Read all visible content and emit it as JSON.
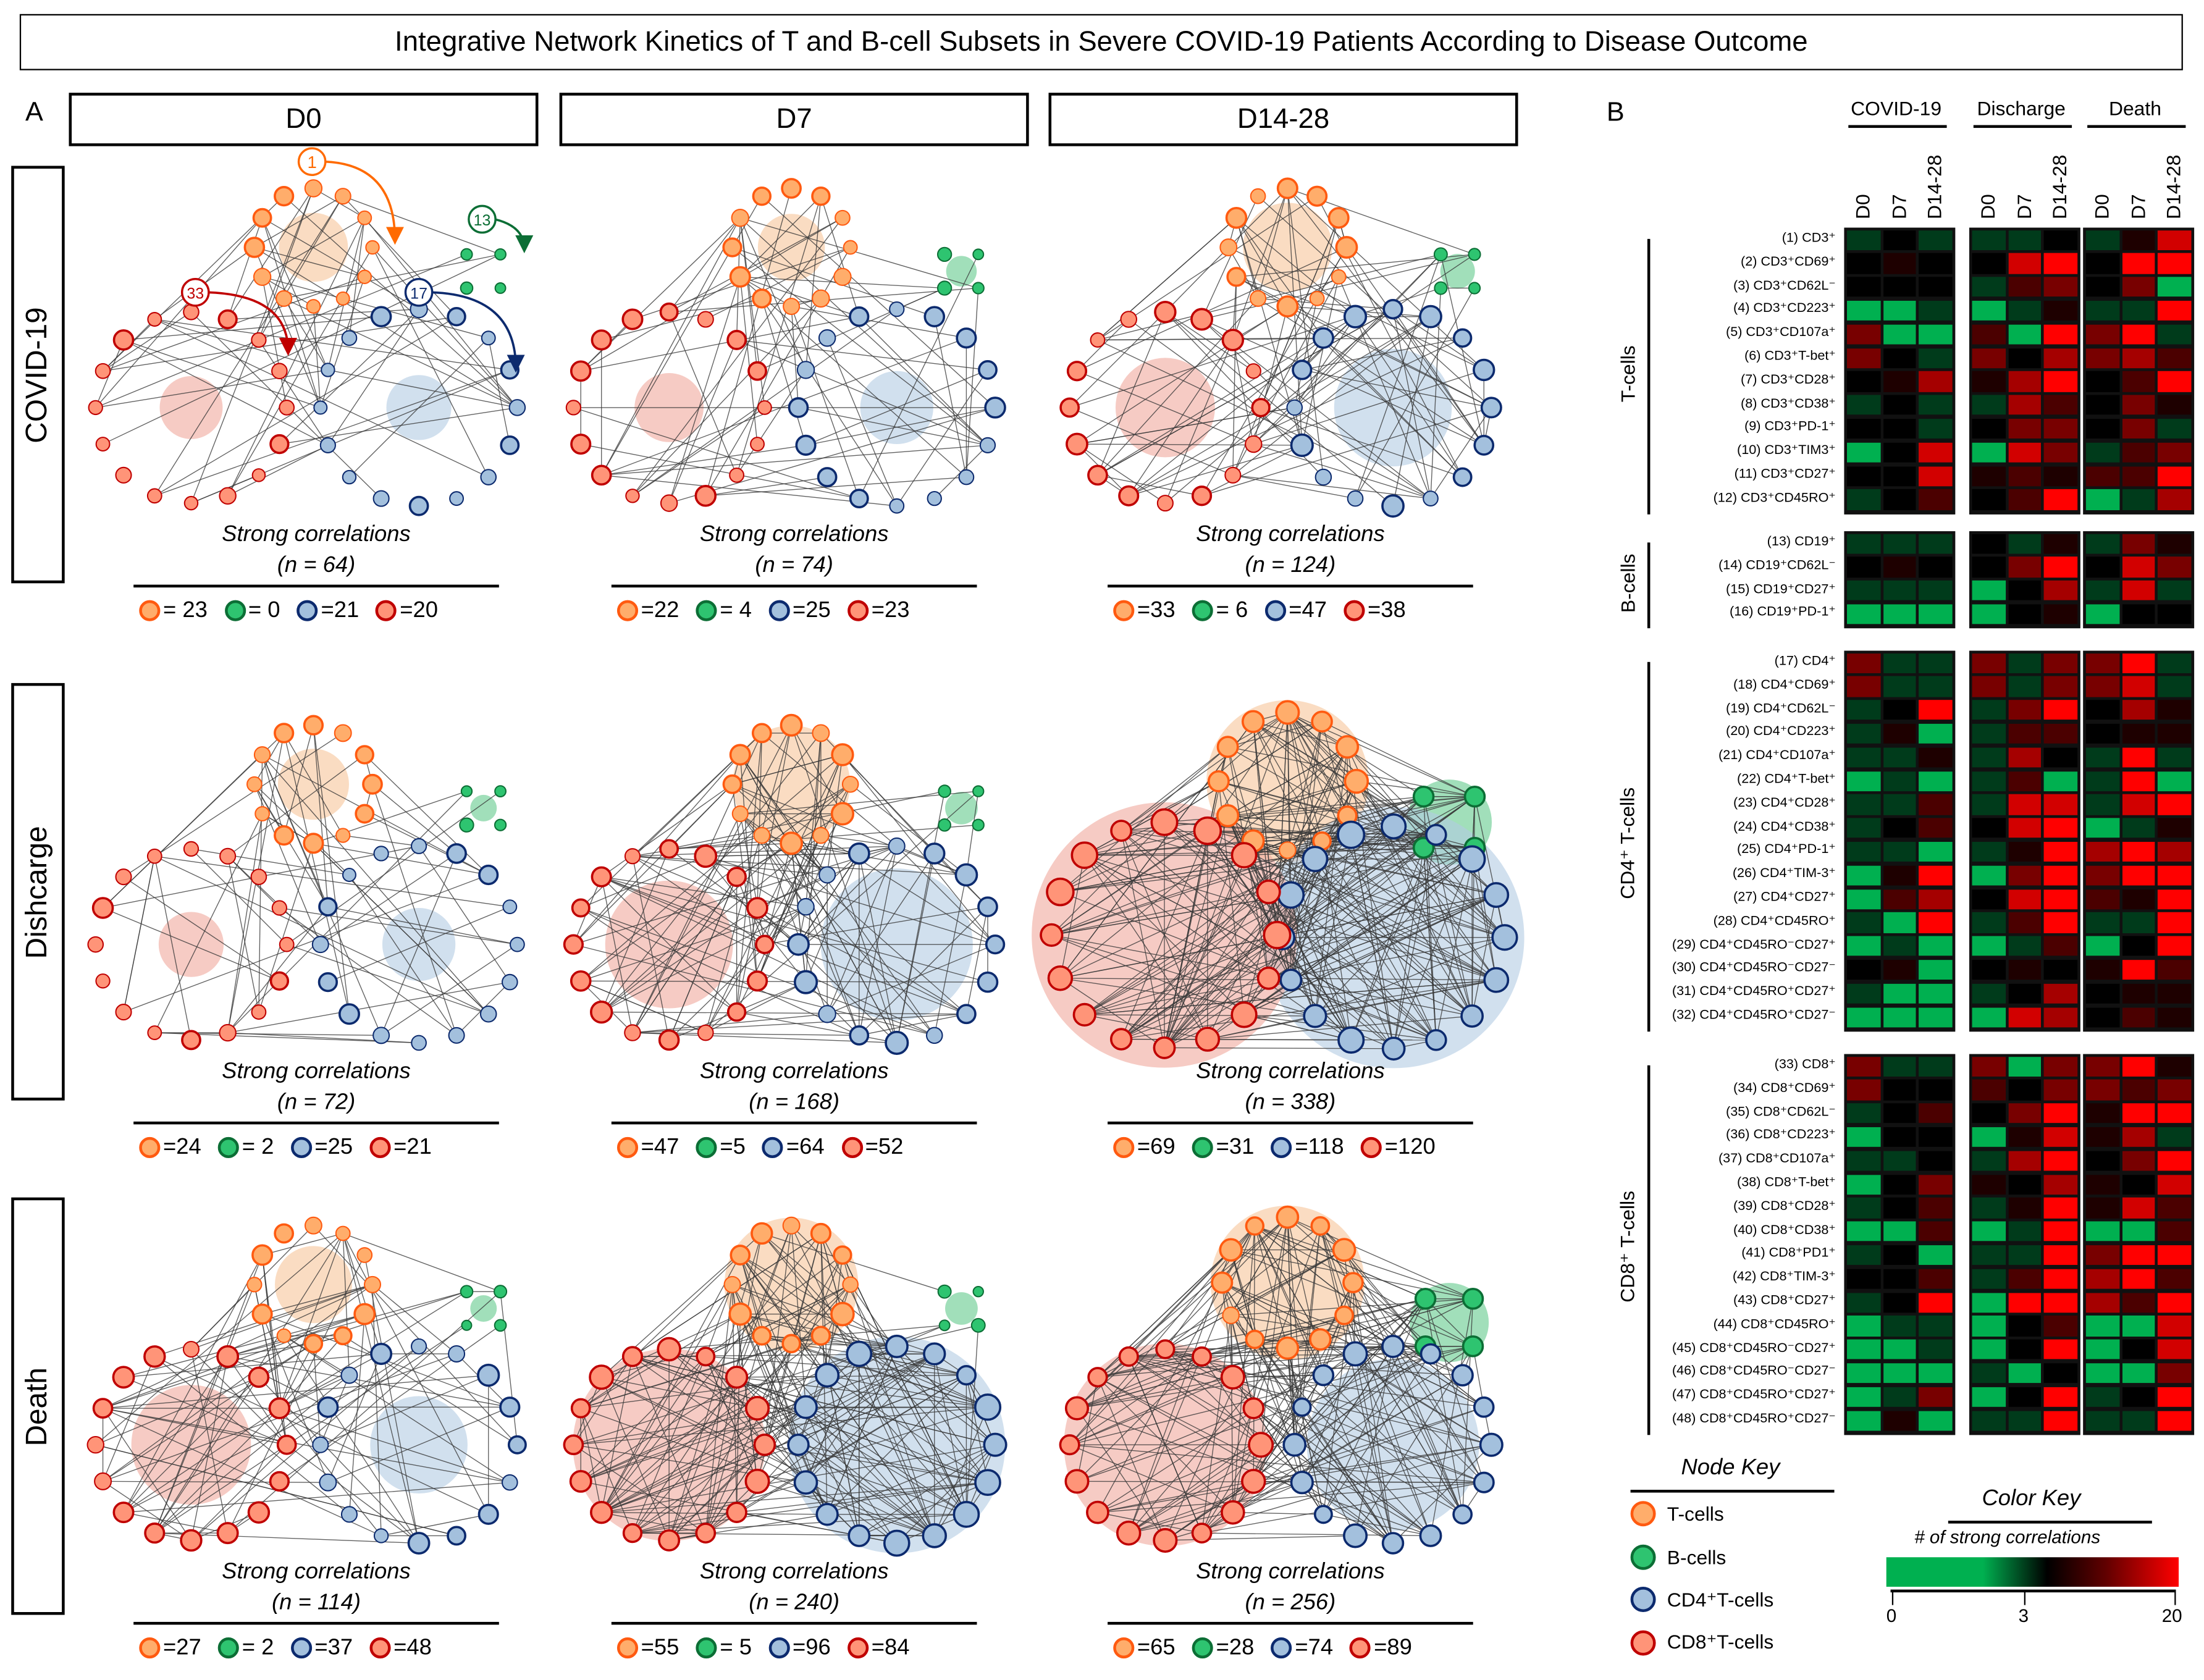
{
  "title": "Integrative Network Kinetics of T and B-cell Subsets in Severe COVID-19 Patients According to Disease Outcome",
  "panel_a_label": "A",
  "panel_b_label": "B",
  "columns": [
    "D0",
    "D7",
    "D14-28"
  ],
  "rows": [
    "COVID-19",
    "Dishcarge",
    "Death"
  ],
  "caption": "Strong correlations",
  "colors": {
    "t_fill": "#ffad6b",
    "t_stroke": "#ff5a10",
    "b_fill": "#2ec470",
    "b_stroke": "#0c6e35",
    "cd4_fill": "#a3c0dd",
    "cd4_stroke": "#0c2a6e",
    "cd8_fill": "#ff9478",
    "cd8_stroke": "#c00000"
  },
  "panels": [
    {
      "row": 0,
      "col": 0,
      "n": 64,
      "n_label": "(n = 64)",
      "counts": [
        23,
        0,
        21,
        20
      ],
      "count_labels": [
        "= 23",
        "= 0",
        "=21",
        "=20"
      ]
    },
    {
      "row": 0,
      "col": 1,
      "n": 74,
      "n_label": "(n = 74)",
      "counts": [
        22,
        4,
        25,
        23
      ],
      "count_labels": [
        "=22",
        "= 4",
        "=25",
        "=23"
      ]
    },
    {
      "row": 0,
      "col": 2,
      "n": 124,
      "n_label": "(n = 124)",
      "counts": [
        33,
        6,
        47,
        38
      ],
      "count_labels": [
        "=33",
        "= 6",
        "=47",
        "=38"
      ]
    },
    {
      "row": 1,
      "col": 0,
      "n": 72,
      "n_label": "(n = 72)",
      "counts": [
        24,
        2,
        25,
        21
      ],
      "count_labels": [
        "=24",
        "= 2",
        "=25",
        "=21"
      ]
    },
    {
      "row": 1,
      "col": 1,
      "n": 168,
      "n_label": "(n = 168)",
      "counts": [
        47,
        5,
        64,
        52
      ],
      "count_labels": [
        "=47",
        "=5",
        "=64",
        "=52"
      ]
    },
    {
      "row": 1,
      "col": 2,
      "n": 338,
      "n_label": "(n = 338)",
      "counts": [
        69,
        31,
        118,
        120
      ],
      "count_labels": [
        "=69",
        "=31",
        "=118",
        "=120"
      ]
    },
    {
      "row": 2,
      "col": 0,
      "n": 114,
      "n_label": "(n = 114)",
      "counts": [
        27,
        2,
        37,
        48
      ],
      "count_labels": [
        "=27",
        "= 2",
        "=37",
        "=48"
      ]
    },
    {
      "row": 2,
      "col": 1,
      "n": 240,
      "n_label": "(n = 240)",
      "counts": [
        55,
        5,
        96,
        84
      ],
      "count_labels": [
        "=55",
        "= 5",
        "=96",
        "=84"
      ]
    },
    {
      "row": 2,
      "col": 2,
      "n": 256,
      "n_label": "(n = 256)",
      "counts": [
        65,
        28,
        74,
        89
      ],
      "count_labels": [
        "=65",
        "=28",
        "=74",
        "=89"
      ]
    }
  ],
  "annotations": [
    {
      "label": "1",
      "group": "T"
    },
    {
      "label": "13",
      "group": "B"
    },
    {
      "label": "17",
      "group": "CD4"
    },
    {
      "label": "33",
      "group": "CD8"
    }
  ],
  "node_key": {
    "title": "Node Key",
    "items": [
      {
        "label": "T-cells",
        "group": "T"
      },
      {
        "label": "B-cells",
        "group": "B"
      },
      {
        "label": "CD4⁺T-cells",
        "group": "CD4"
      },
      {
        "label": "CD8⁺T-cells",
        "group": "CD8"
      }
    ]
  },
  "color_key": {
    "title": "Color Key",
    "subtitle": "# of strong correlations",
    "ticks": [
      "0",
      "3",
      "20"
    ],
    "low_color": "#00b050",
    "mid_color": "#000000",
    "high_color": "#ff0000"
  },
  "heatmap": {
    "group_headers": [
      "COVID-19",
      "Discharge",
      "Death"
    ],
    "time_labels": [
      "D0",
      "D7",
      "D14-28"
    ],
    "groups": [
      {
        "label": "T-cells",
        "rows": [
          {
            "label": "(1) CD3⁺",
            "values": [
              2,
              3,
              2,
              2,
              2,
              3,
              2,
              5,
              17
            ]
          },
          {
            "label": "(2) CD3⁺CD69⁺",
            "values": [
              3,
              5,
              3,
              3,
              17,
              20,
              3,
              20,
              20
            ]
          },
          {
            "label": "(3) CD3⁺CD62L⁻",
            "values": [
              3,
              3,
              3,
              2,
              8,
              11,
              3,
              11,
              0
            ]
          },
          {
            "label": "(4) CD3⁺CD223⁺",
            "values": [
              0,
              0,
              2,
              0,
              2,
              5,
              2,
              2,
              20
            ]
          },
          {
            "label": "(5) CD3⁺CD107a⁺",
            "values": [
              11,
              0,
              0,
              8,
              0,
              20,
              11,
              20,
              2
            ]
          },
          {
            "label": "(6) CD3⁺T-bet⁺",
            "values": [
              11,
              3,
              2,
              11,
              3,
              14,
              11,
              14,
              8
            ]
          },
          {
            "label": "(7) CD3⁺CD28⁺",
            "values": [
              3,
              5,
              14,
              5,
              14,
              20,
              3,
              8,
              20
            ]
          },
          {
            "label": "(8) CD3⁺CD38⁺",
            "values": [
              2,
              3,
              2,
              2,
              14,
              8,
              3,
              11,
              5
            ]
          },
          {
            "label": "(9) CD3⁺PD-1⁺",
            "values": [
              3,
              3,
              2,
              3,
              11,
              11,
              3,
              11,
              2
            ]
          },
          {
            "label": "(10) CD3⁺TIM3⁺",
            "values": [
              0,
              3,
              17,
              0,
              17,
              11,
              2,
              8,
              11
            ]
          },
          {
            "label": "(11) CD3⁺CD27⁺",
            "values": [
              3,
              3,
              17,
              5,
              8,
              5,
              8,
              8,
              20
            ]
          },
          {
            "label": "(12) CD3⁺CD45RO⁺",
            "values": [
              2,
              3,
              8,
              3,
              8,
              20,
              0,
              2,
              14
            ]
          }
        ]
      },
      {
        "label": "B-cells",
        "rows": [
          {
            "label": "(13) CD19⁺",
            "values": [
              2,
              2,
              2,
              3,
              2,
              5,
              2,
              11,
              5
            ]
          },
          {
            "label": "(14) CD19⁺CD62L⁻",
            "values": [
              3,
              5,
              3,
              3,
              11,
              20,
              3,
              17,
              11
            ]
          },
          {
            "label": "(15) CD19⁺CD27⁺",
            "values": [
              2,
              2,
              2,
              0,
              3,
              14,
              2,
              17,
              2
            ]
          },
          {
            "label": "(16) CD19⁺PD-1⁺",
            "values": [
              0,
              0,
              0,
              0,
              3,
              5,
              0,
              3,
              3
            ]
          }
        ]
      },
      {
        "label": "CD4⁺ T-cells",
        "rows": [
          {
            "label": "(17) CD4⁺",
            "values": [
              11,
              2,
              2,
              11,
              2,
              11,
              11,
              20,
              2
            ]
          },
          {
            "label": "(18) CD4⁺CD69⁺",
            "values": [
              11,
              2,
              2,
              11,
              2,
              11,
              11,
              17,
              2
            ]
          },
          {
            "label": "(19) CD4⁺CD62L⁻",
            "values": [
              2,
              3,
              20,
              2,
              11,
              20,
              3,
              14,
              5
            ]
          },
          {
            "label": "(20) CD4⁺CD223⁺",
            "values": [
              2,
              5,
              0,
              2,
              8,
              8,
              3,
              5,
              5
            ]
          },
          {
            "label": "(21) CD4⁺CD107a⁺",
            "values": [
              2,
              2,
              5,
              2,
              14,
              3,
              2,
              20,
              2
            ]
          },
          {
            "label": "(22) CD4⁺T-bet⁺",
            "values": [
              0,
              2,
              0,
              2,
              8,
              0,
              2,
              20,
              0
            ]
          },
          {
            "label": "(23) CD4⁺CD28⁺",
            "values": [
              2,
              2,
              8,
              2,
              17,
              17,
              2,
              17,
              20
            ]
          },
          {
            "label": "(24) CD4⁺CD38⁺",
            "values": [
              2,
              3,
              8,
              3,
              17,
              20,
              0,
              2,
              5
            ]
          },
          {
            "label": "(25) CD4⁺PD-1⁺",
            "values": [
              2,
              2,
              0,
              2,
              5,
              20,
              14,
              20,
              14
            ]
          },
          {
            "label": "(26) CD4⁺TIM-3⁺",
            "values": [
              0,
              5,
              20,
              0,
              11,
              20,
              11,
              20,
              20
            ]
          },
          {
            "label": "(27) CD4⁺CD27⁺",
            "values": [
              0,
              8,
              14,
              3,
              17,
              20,
              8,
              5,
              20
            ]
          },
          {
            "label": "(28) CD4⁺CD45RO⁺",
            "values": [
              2,
              0,
              20,
              2,
              8,
              20,
              2,
              2,
              20
            ]
          },
          {
            "label": "(29) CD4⁺CD45RO⁻CD27⁺",
            "values": [
              0,
              2,
              0,
              0,
              2,
              8,
              0,
              3,
              20
            ]
          },
          {
            "label": "(30) CD4⁺CD45RO⁻CD27⁻",
            "values": [
              3,
              5,
              0,
              3,
              5,
              3,
              5,
              20,
              8
            ]
          },
          {
            "label": "(31) CD4⁺CD45RO⁺CD27⁺",
            "values": [
              2,
              0,
              0,
              2,
              3,
              14,
              3,
              5,
              5
            ]
          },
          {
            "label": "(32) CD4⁺CD45RO⁺CD27⁻",
            "values": [
              0,
              0,
              0,
              0,
              17,
              14,
              3,
              8,
              5
            ]
          }
        ]
      },
      {
        "label": "CD8⁺ T-cells",
        "rows": [
          {
            "label": "(33) CD8⁺",
            "values": [
              11,
              2,
              2,
              11,
              0,
              11,
              11,
              20,
              5
            ]
          },
          {
            "label": "(34) CD8⁺CD69⁺",
            "values": [
              11,
              3,
              3,
              8,
              3,
              11,
              11,
              8,
              11
            ]
          },
          {
            "label": "(35) CD8⁺CD62L⁻",
            "values": [
              2,
              3,
              8,
              3,
              11,
              20,
              5,
              20,
              20
            ]
          },
          {
            "label": "(36) CD8⁺CD223⁺",
            "values": [
              0,
              3,
              3,
              0,
              5,
              17,
              5,
              14,
              2
            ]
          },
          {
            "label": "(37) CD8⁺CD107a⁺",
            "values": [
              2,
              2,
              3,
              2,
              14,
              20,
              3,
              11,
              20
            ]
          },
          {
            "label": "(38) CD8⁺T-bet⁺",
            "values": [
              0,
              3,
              11,
              5,
              3,
              14,
              5,
              3,
              17
            ]
          },
          {
            "label": "(39) CD8⁺CD28⁺",
            "values": [
              2,
              3,
              8,
              2,
              5,
              20,
              5,
              17,
              8
            ]
          },
          {
            "label": "(40) CD8⁺CD38⁺",
            "values": [
              0,
              0,
              8,
              0,
              2,
              20,
              0,
              0,
              8
            ]
          },
          {
            "label": "(41) CD8⁺PD1⁺",
            "values": [
              2,
              3,
              0,
              2,
              2,
              20,
              11,
              20,
              20
            ]
          },
          {
            "label": "(42) CD8⁺TIM-3⁺",
            "values": [
              3,
              3,
              8,
              2,
              8,
              20,
              14,
              20,
              8
            ]
          },
          {
            "label": "(43) CD8⁺CD27⁺",
            "values": [
              2,
              3,
              20,
              0,
              20,
              20,
              14,
              8,
              20
            ]
          },
          {
            "label": "(44) CD8⁺CD45RO⁺",
            "values": [
              0,
              2,
              2,
              0,
              3,
              8,
              0,
              0,
              17
            ]
          },
          {
            "label": "(45) CD8⁺CD45RO⁻CD27⁺",
            "values": [
              0,
              0,
              2,
              0,
              3,
              20,
              0,
              3,
              17
            ]
          },
          {
            "label": "(46) CD8⁺CD45RO⁻CD27⁻",
            "values": [
              0,
              0,
              0,
              2,
              0,
              3,
              0,
              0,
              11
            ]
          },
          {
            "label": "(47) CD8⁺CD45RO⁺CD27⁺",
            "values": [
              0,
              2,
              11,
              0,
              3,
              20,
              2,
              3,
              20
            ]
          },
          {
            "label": "(48) CD8⁺CD45RO⁺CD27⁻",
            "values": [
              0,
              5,
              0,
              2,
              2,
              20,
              2,
              2,
              20
            ]
          }
        ]
      }
    ]
  }
}
